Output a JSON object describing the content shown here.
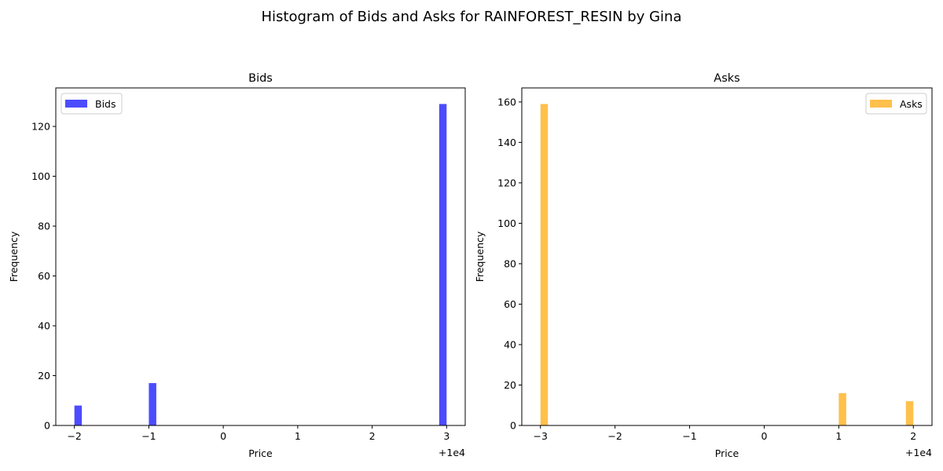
{
  "suptitle": "Histogram of Bids and Asks for RAINFOREST_RESIN by Gina",
  "chart_data": [
    {
      "type": "bar",
      "title": "Bids",
      "xlabel": "Price",
      "ylabel": "Frequency",
      "x_offset_label": "+1e4",
      "xlim": [
        -2.25,
        3.25
      ],
      "ylim": [
        0,
        135.45
      ],
      "xticks": [
        -2,
        -1,
        0,
        1,
        2,
        3
      ],
      "xtick_labels": [
        "−2",
        "−1",
        "0",
        "1",
        "2",
        "3"
      ],
      "yticks": [
        0,
        20,
        40,
        60,
        80,
        100,
        120
      ],
      "bin_width": 0.1,
      "color": "#0000ff",
      "legend": {
        "label": "Bids",
        "placement": "upper left"
      },
      "bars": [
        {
          "x": -1.95,
          "value": 8
        },
        {
          "x": -0.95,
          "value": 17
        },
        {
          "x": 2.95,
          "value": 129
        }
      ]
    },
    {
      "type": "bar",
      "title": "Asks",
      "xlabel": "Price",
      "ylabel": "Frequency",
      "x_offset_label": "+1e4",
      "xlim": [
        -3.25,
        2.25
      ],
      "ylim": [
        0,
        166.95
      ],
      "xticks": [
        -3,
        -2,
        -1,
        0,
        1,
        2
      ],
      "xtick_labels": [
        "−3",
        "−2",
        "−1",
        "0",
        "1",
        "2"
      ],
      "yticks": [
        0,
        20,
        40,
        60,
        80,
        100,
        120,
        140,
        160
      ],
      "bin_width": 0.1,
      "color": "#ffa500",
      "legend": {
        "label": "Asks",
        "placement": "upper right"
      },
      "bars": [
        {
          "x": -2.95,
          "value": 159
        },
        {
          "x": 1.05,
          "value": 16
        },
        {
          "x": 1.95,
          "value": 12
        }
      ]
    }
  ]
}
